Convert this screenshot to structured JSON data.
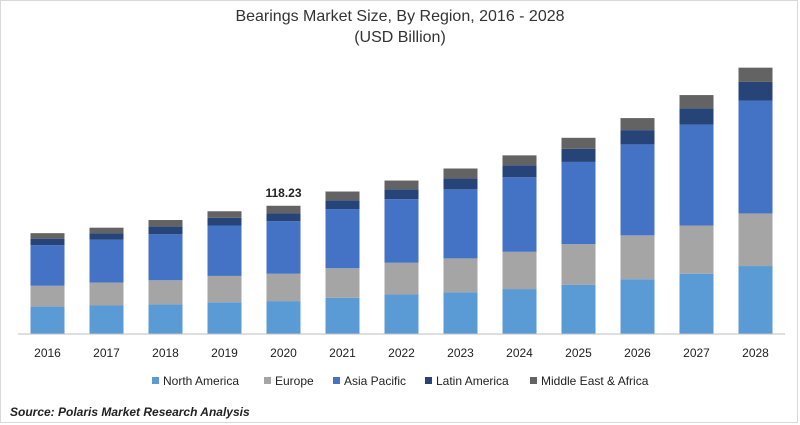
{
  "chart_data": {
    "type": "bar",
    "stacked": true,
    "title": "Bearings Market Size, By Region, 2016 - 2028",
    "subtitle": "(USD Billion)",
    "xlabel": "",
    "ylabel": "",
    "grid": false,
    "legend_position": "bottom",
    "categories": [
      "2016",
      "2017",
      "2018",
      "2019",
      "2020",
      "2021",
      "2022",
      "2023",
      "2024",
      "2025",
      "2026",
      "2027",
      "2028"
    ],
    "series": [
      {
        "name": "North America",
        "color": "#5b9bd5",
        "values": [
          25,
          26,
          27,
          29,
          30,
          33,
          36,
          38,
          41,
          45,
          50,
          55,
          62
        ]
      },
      {
        "name": "Europe",
        "color": "#a5a5a5",
        "values": [
          19,
          21,
          22,
          24,
          25,
          27,
          29,
          31,
          34,
          37,
          40,
          44,
          48
        ]
      },
      {
        "name": "Asia Pacific",
        "color": "#4472c4",
        "values": [
          37,
          39,
          42,
          46,
          48,
          54,
          58,
          63,
          68,
          75,
          83,
          92,
          103
        ]
      },
      {
        "name": "Latin America",
        "color": "#264478",
        "values": [
          6,
          6,
          7,
          7,
          7,
          8,
          9,
          10,
          11,
          12,
          13,
          15,
          17
        ]
      },
      {
        "name": "Middle East & Africa",
        "color": "#636363",
        "values": [
          5,
          5,
          6,
          6,
          7,
          8,
          8,
          9,
          9,
          10,
          11,
          12,
          13
        ]
      }
    ],
    "annotations": [
      {
        "category": "2020",
        "text": "118.23"
      }
    ],
    "ylim": [
      0,
      250
    ]
  },
  "source": "Source: Polaris  Market Research Analysis"
}
